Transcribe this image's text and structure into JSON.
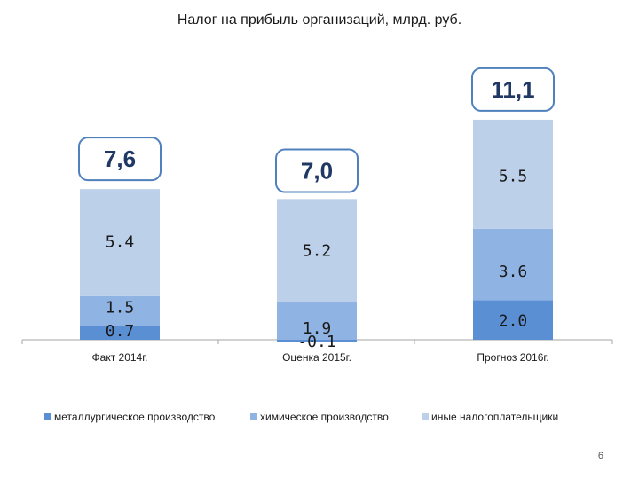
{
  "page_number": "6",
  "colors": {
    "metallurgy": "#5b8fd4",
    "chemical": "#8fb4e3",
    "other": "#bcd0ea",
    "callout_border": "#4f81bd",
    "callout_text": "#1f3864"
  },
  "chart_data": {
    "type": "bar",
    "stacked": true,
    "title": "Налог на прибыль организаций, млрд. руб.",
    "categories": [
      "Факт 2014г.",
      "Оценка 2015г.",
      "Прогноз 2016г."
    ],
    "series": [
      {
        "name": "металлургическое производство",
        "values": [
          0.7,
          -0.1,
          2.0
        ],
        "labels": [
          "0.7",
          "-0.1",
          "2.0"
        ]
      },
      {
        "name": "химическое производство",
        "values": [
          1.5,
          1.9,
          3.6
        ],
        "labels": [
          "1.5",
          "1.9",
          "3.6"
        ]
      },
      {
        "name": "иные налогоплательщики",
        "values": [
          5.4,
          5.2,
          5.5
        ],
        "labels": [
          "5.4",
          "5.2",
          "5.5"
        ]
      }
    ],
    "totals": [
      "7,6",
      "7,0",
      "11,1"
    ],
    "total_values": [
      7.6,
      7.0,
      11.1
    ],
    "ylim": [
      -0.1,
      11.1
    ],
    "grid": false,
    "legend": "bottom"
  }
}
